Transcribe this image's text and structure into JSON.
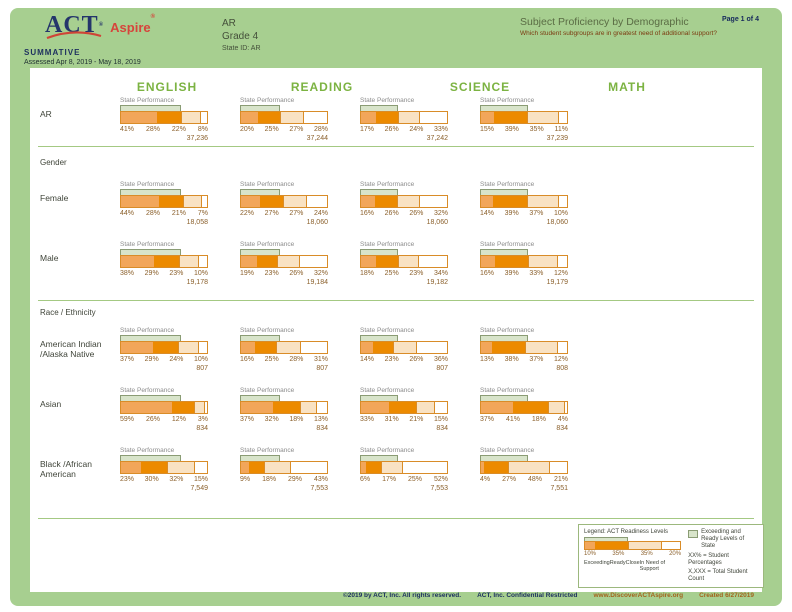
{
  "header": {
    "logo": {
      "act": "ACT",
      "aspire": "Aspire",
      "reg": "®"
    },
    "program": "SUMMATIVE",
    "assessed": "Assessed Apr 8, 2019 - May 18, 2019",
    "org": {
      "line1": "AR",
      "line2": "Grade 4",
      "line3": "State ID: AR"
    },
    "title": "Subject Proficiency by Demographic",
    "subtitle": "Which student subgroups are in greatest need of additional support?",
    "page": "Page 1 of 4"
  },
  "cell_label": "State Performance",
  "subjects": [
    {
      "label": "ENGLISH",
      "state_band_pct": "69%"
    },
    {
      "label": "READING",
      "state_band_pct": "45%"
    },
    {
      "label": "SCIENCE",
      "state_band_pct": "43%"
    },
    {
      "label": "MATH",
      "state_band_pct": "54%"
    }
  ],
  "groups": [
    {
      "section": "",
      "rows": [
        {
          "label_lines": [
            "AR"
          ],
          "cells": [
            {
              "pcts": [
                "41%",
                "28%",
                "22%",
                "8%"
              ],
              "count": "37,236"
            },
            {
              "pcts": [
                "20%",
                "25%",
                "27%",
                "28%"
              ],
              "count": "37,244"
            },
            {
              "pcts": [
                "17%",
                "26%",
                "24%",
                "33%"
              ],
              "count": "37,242"
            },
            {
              "pcts": [
                "15%",
                "39%",
                "35%",
                "11%"
              ],
              "count": "37,239"
            }
          ]
        }
      ]
    },
    {
      "section": "Gender",
      "rows": [
        {
          "label_lines": [
            "Female"
          ],
          "cells": [
            {
              "pcts": [
                "44%",
                "28%",
                "21%",
                "7%"
              ],
              "count": "18,058"
            },
            {
              "pcts": [
                "22%",
                "27%",
                "27%",
                "24%"
              ],
              "count": "18,060"
            },
            {
              "pcts": [
                "16%",
                "26%",
                "26%",
                "32%"
              ],
              "count": "18,060"
            },
            {
              "pcts": [
                "14%",
                "39%",
                "37%",
                "10%"
              ],
              "count": "18,060"
            }
          ]
        },
        {
          "label_lines": [
            "Male"
          ],
          "cells": [
            {
              "pcts": [
                "38%",
                "29%",
                "23%",
                "10%"
              ],
              "count": "19,178"
            },
            {
              "pcts": [
                "19%",
                "23%",
                "26%",
                "32%"
              ],
              "count": "19,184"
            },
            {
              "pcts": [
                "18%",
                "25%",
                "23%",
                "34%"
              ],
              "count": "19,182"
            },
            {
              "pcts": [
                "16%",
                "39%",
                "33%",
                "12%"
              ],
              "count": "19,179"
            }
          ]
        }
      ]
    },
    {
      "section": "Race / Ethnicity",
      "rows": [
        {
          "label_lines": [
            "American Indian",
            "/Alaska Native"
          ],
          "cells": [
            {
              "pcts": [
                "37%",
                "29%",
                "24%",
                "10%"
              ],
              "count": "807"
            },
            {
              "pcts": [
                "16%",
                "25%",
                "28%",
                "31%"
              ],
              "count": "807"
            },
            {
              "pcts": [
                "14%",
                "23%",
                "26%",
                "36%"
              ],
              "count": "807"
            },
            {
              "pcts": [
                "13%",
                "38%",
                "37%",
                "12%"
              ],
              "count": "808"
            }
          ]
        },
        {
          "label_lines": [
            "Asian"
          ],
          "cells": [
            {
              "pcts": [
                "59%",
                "26%",
                "12%",
                "3%"
              ],
              "count": "834"
            },
            {
              "pcts": [
                "37%",
                "32%",
                "18%",
                "13%"
              ],
              "count": "834"
            },
            {
              "pcts": [
                "33%",
                "31%",
                "21%",
                "15%"
              ],
              "count": "834"
            },
            {
              "pcts": [
                "37%",
                "41%",
                "18%",
                "4%"
              ],
              "count": "834"
            }
          ]
        },
        {
          "label_lines": [
            "Black /African",
            "American"
          ],
          "cells": [
            {
              "pcts": [
                "23%",
                "30%",
                "32%",
                "15%"
              ],
              "count": "7,549"
            },
            {
              "pcts": [
                "9%",
                "18%",
                "29%",
                "43%"
              ],
              "count": "7,553"
            },
            {
              "pcts": [
                "6%",
                "17%",
                "25%",
                "52%"
              ],
              "count": "7,553"
            },
            {
              "pcts": [
                "4%",
                "27%",
                "48%",
                "21%"
              ],
              "count": "7,551"
            }
          ]
        }
      ]
    }
  ],
  "legend": {
    "title": "Legend: ACT Readiness Levels",
    "sample_pcts": [
      "10%",
      "35%",
      "35%",
      "20%"
    ],
    "sample_band_pct": "45%",
    "level_labels": [
      "Exceeding",
      "Ready",
      "Close",
      "In Need of Support"
    ],
    "state_band_label": "Exceeding and Ready Levels of State",
    "pct_note": "XX% = Student Percentages",
    "count_note": "X,XXX = Total Student Count"
  },
  "footer": {
    "copyright": "©2019 by ACT, Inc. All rights reserved.",
    "confidential": "ACT, Inc. Confidential Restricted",
    "url": "www.DiscoverACTAspire.org",
    "created": "Created 6/27/2019"
  },
  "colors": {
    "exceeding": "#f2a65a",
    "ready": "#ec8a00",
    "close": "#f9e2c3",
    "need_support": "#ffffff",
    "state_band": "#d8e4ca",
    "page_green": "#a7cf90",
    "header_green": "#7cb342"
  }
}
